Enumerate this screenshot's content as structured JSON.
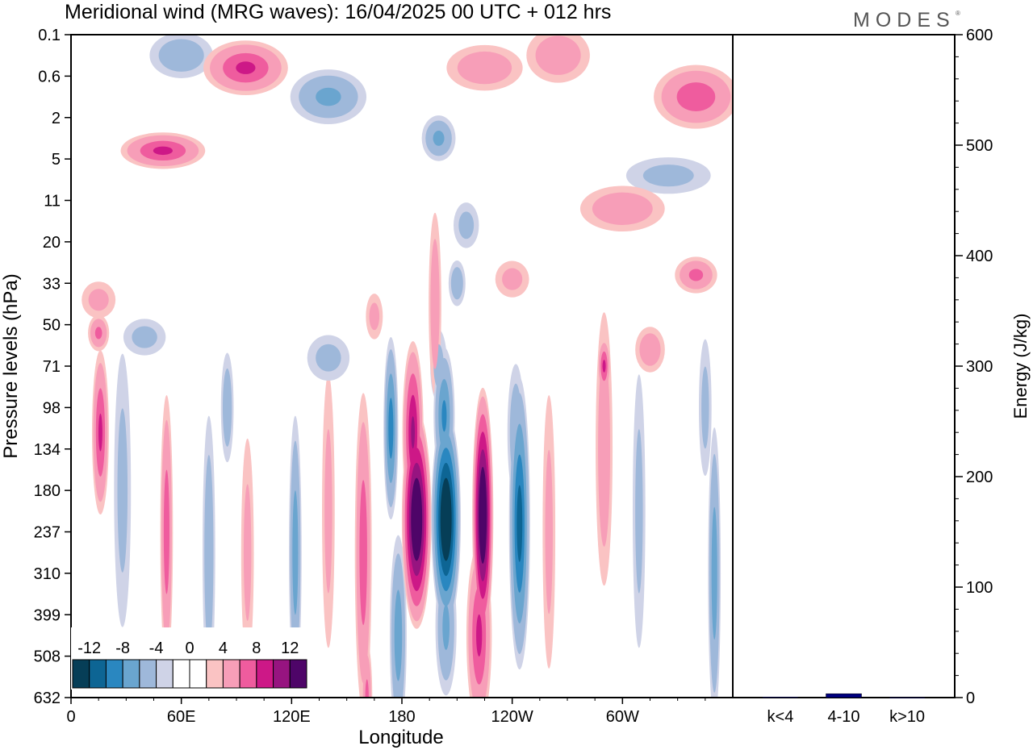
{
  "brand": "MODES",
  "brand_mark": "®",
  "chart_data": [
    {
      "type": "heatmap",
      "title": "Meridional wind (MRG waves):  16/04/2025  00 UTC  + 012 hrs",
      "xlabel": "Longitude",
      "ylabel": "Pressure levels (hPa)",
      "x_ticks": [
        "0",
        "60E",
        "120E",
        "180",
        "120W",
        "60W"
      ],
      "x_tick_degrees": [
        0,
        60,
        120,
        180,
        240,
        300
      ],
      "xlim": [
        0,
        360
      ],
      "y_ticks": [
        "0.1",
        "0.6",
        "2",
        "5",
        "11",
        "20",
        "33",
        "50",
        "71",
        "98",
        "134",
        "180",
        "237",
        "310",
        "399",
        "508",
        "632"
      ],
      "colorbar": {
        "labels": [
          "-12",
          "-8",
          "-4",
          "0",
          "4",
          "8",
          "12"
        ],
        "colors": [
          "#063e57",
          "#0d6594",
          "#2a87c0",
          "#6aa5cf",
          "#9eb8da",
          "#cfd3e7",
          "#ffffff",
          "#ffffff",
          "#fac3c3",
          "#f79eb8",
          "#ef5c9e",
          "#cd1887",
          "#971480",
          "#4e0568"
        ]
      },
      "blobs": [
        {
          "lon": 188,
          "level": 11.7,
          "dlon": 7,
          "dlev": 2.4,
          "v": 14
        },
        {
          "lon": 186,
          "level": 9.6,
          "dlon": 5,
          "dlev": 2.0,
          "v": 8
        },
        {
          "lon": 198,
          "level": 6.5,
          "dlon": 3,
          "dlev": 2.0,
          "v": 3
        },
        {
          "lon": 204,
          "level": 11.7,
          "dlon": 7,
          "dlev": 2.4,
          "v": -14
        },
        {
          "lon": 203,
          "level": 9.2,
          "dlon": 5,
          "dlev": 1.5,
          "v": -6
        },
        {
          "lon": 204,
          "level": 14.3,
          "dlon": 5,
          "dlev": 1.5,
          "v": -4
        },
        {
          "lon": 224,
          "level": 11.6,
          "dlon": 5,
          "dlev": 2.8,
          "v": 14
        },
        {
          "lon": 222,
          "level": 14.5,
          "dlon": 6,
          "dlev": 2.0,
          "v": 6
        },
        {
          "lon": 244,
          "level": 11.8,
          "dlon": 5,
          "dlev": 3.2,
          "v": -9
        },
        {
          "lon": 242,
          "level": 9.6,
          "dlon": 4,
          "dlev": 1.5,
          "v": -3
        },
        {
          "lon": 174,
          "level": 9.5,
          "dlon": 3.5,
          "dlev": 2.0,
          "v": -7
        },
        {
          "lon": 178,
          "level": 14.5,
          "dlon": 4,
          "dlev": 2.2,
          "v": -5
        },
        {
          "lon": 159,
          "level": 12.5,
          "dlon": 4,
          "dlev": 3.5,
          "v": 5
        },
        {
          "lon": 161,
          "level": 16.0,
          "dlon": 2.5,
          "dlev": 1.2,
          "v": 4
        },
        {
          "lon": 140,
          "level": 11.5,
          "dlon": 3,
          "dlev": 3.0,
          "v": 2
        },
        {
          "lon": 122,
          "level": 12.5,
          "dlon": 3,
          "dlev": 3.0,
          "v": -5
        },
        {
          "lon": 96,
          "level": 12.5,
          "dlon": 3,
          "dlev": 2.5,
          "v": 2
        },
        {
          "lon": 75,
          "level": 12.5,
          "dlon": 3,
          "dlev": 3.0,
          "v": -3
        },
        {
          "lon": 85,
          "level": 9.0,
          "dlon": 3,
          "dlev": 1.2,
          "v": -3
        },
        {
          "lon": 52,
          "level": 12.0,
          "dlon": 3,
          "dlev": 3.0,
          "v": 5
        },
        {
          "lon": 28,
          "level": 11.0,
          "dlon": 4,
          "dlev": 3.0,
          "v": -2
        },
        {
          "lon": 16,
          "level": 9.6,
          "dlon": 4,
          "dlev": 1.8,
          "v": 6
        },
        {
          "lon": 260,
          "level": 12.0,
          "dlon": 3,
          "dlev": 3.0,
          "v": 2
        },
        {
          "lon": 290,
          "level": 10.0,
          "dlon": 4,
          "dlev": 3.0,
          "v": 3
        },
        {
          "lon": 290,
          "level": 8.0,
          "dlon": 3,
          "dlev": 0.6,
          "v": 6
        },
        {
          "lon": 309,
          "level": 11.5,
          "dlon": 3,
          "dlev": 3.0,
          "v": -2
        },
        {
          "lon": 350,
          "level": 13.0,
          "dlon": 3,
          "dlev": 3.2,
          "v": -5
        },
        {
          "lon": 345,
          "level": 9.0,
          "dlon": 3,
          "dlev": 1.5,
          "v": -2
        },
        {
          "lon": 200,
          "level": 8.0,
          "dlon": 4,
          "dlev": 0.8,
          "v": -2
        },
        {
          "lon": 165,
          "level": 6.8,
          "dlon": 4,
          "dlev": 0.5,
          "v": 2
        },
        {
          "lon": 210,
          "level": 6.0,
          "dlon": 4,
          "dlev": 0.5,
          "v": -3
        },
        {
          "lon": 215,
          "level": 4.6,
          "dlon": 6,
          "dlev": 0.5,
          "v": -2
        },
        {
          "lon": 200,
          "level": 2.5,
          "dlon": 8,
          "dlev": 0.5,
          "v": -4
        },
        {
          "lon": 225,
          "level": 0.8,
          "dlon": 18,
          "dlev": 0.5,
          "v": 3
        },
        {
          "lon": 265,
          "level": 0.5,
          "dlon": 15,
          "dlev": 0.6,
          "v": 3
        },
        {
          "lon": 95,
          "level": 0.8,
          "dlon": 20,
          "dlev": 0.6,
          "v": 6
        },
        {
          "lon": 60,
          "level": 0.5,
          "dlon": 15,
          "dlev": 0.5,
          "v": -3
        },
        {
          "lon": 50,
          "level": 2.8,
          "dlon": 20,
          "dlev": 0.4,
          "v": 6
        },
        {
          "lon": 140,
          "level": 1.5,
          "dlon": 18,
          "dlev": 0.6,
          "v": -4
        },
        {
          "lon": 340,
          "level": 1.5,
          "dlon": 20,
          "dlev": 0.7,
          "v": 5
        },
        {
          "lon": 340,
          "level": 5.8,
          "dlon": 10,
          "dlev": 0.4,
          "v": 4
        },
        {
          "lon": 325,
          "level": 3.4,
          "dlon": 20,
          "dlev": 0.4,
          "v": -2
        },
        {
          "lon": 15,
          "level": 6.4,
          "dlon": 8,
          "dlev": 0.4,
          "v": 2
        },
        {
          "lon": 15,
          "level": 7.2,
          "dlon": 5,
          "dlev": 0.4,
          "v": 4
        },
        {
          "lon": 40,
          "level": 7.3,
          "dlon": 10,
          "dlev": 0.4,
          "v": -2
        },
        {
          "lon": 140,
          "level": 7.8,
          "dlon": 10,
          "dlev": 0.5,
          "v": -2
        },
        {
          "lon": 240,
          "level": 5.9,
          "dlon": 8,
          "dlev": 0.4,
          "v": 2
        },
        {
          "lon": 315,
          "level": 7.6,
          "dlon": 7,
          "dlev": 0.5,
          "v": 3
        },
        {
          "lon": 300,
          "level": 4.2,
          "dlon": 20,
          "dlev": 0.5,
          "v": 3
        }
      ]
    },
    {
      "type": "bar",
      "ylabel": "Energy (J/kg)",
      "categories": [
        "k<4",
        "4-10",
        "k>10"
      ],
      "values": [
        0.5,
        3.5,
        0.3
      ],
      "ylim": [
        0,
        600
      ],
      "y_ticks": [
        "0",
        "100",
        "200",
        "300",
        "400",
        "500",
        "600"
      ],
      "y_tick_values": [
        0,
        100,
        200,
        300,
        400,
        500,
        600
      ],
      "bar_colors": [
        "#000080",
        "#000080",
        "#000080"
      ]
    }
  ]
}
